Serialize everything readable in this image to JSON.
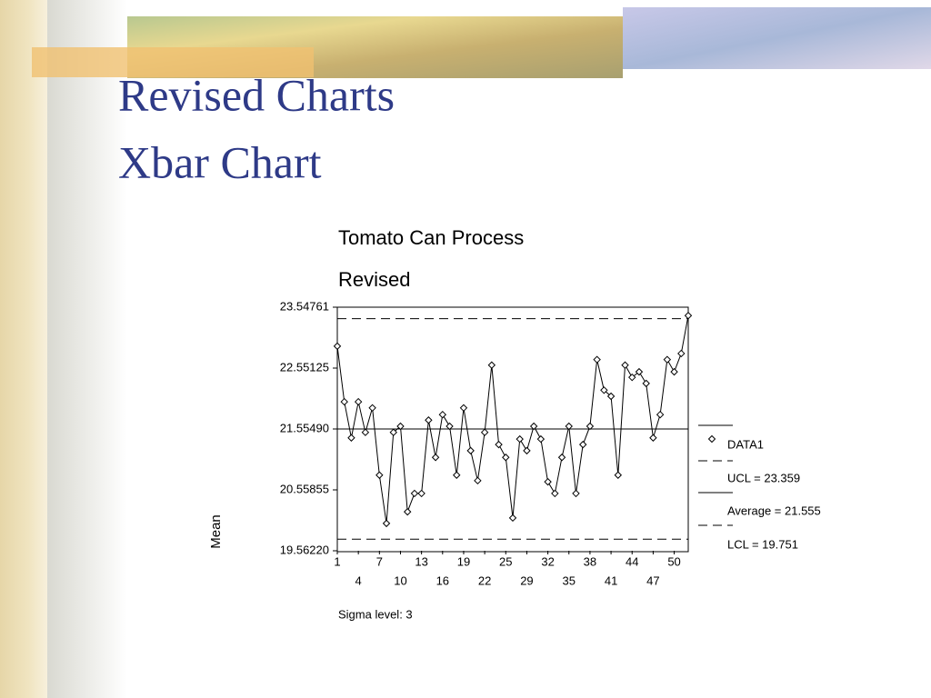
{
  "header": {
    "title": "Revised Charts",
    "subtitle": "Xbar Chart"
  },
  "chart_data": {
    "type": "line",
    "title": "Tomato Can Process",
    "subtitle": "Revised",
    "y_label": "Mean",
    "note": "Sigma level: 3",
    "categories": [
      1,
      null,
      null,
      4,
      null,
      null,
      7,
      null,
      null,
      10,
      null,
      null,
      13,
      null,
      null,
      16,
      null,
      null,
      19,
      null,
      null,
      22,
      null,
      null,
      25,
      null,
      null,
      29,
      null,
      null,
      32,
      null,
      null,
      35,
      null,
      null,
      38,
      null,
      null,
      41,
      null,
      null,
      44,
      null,
      null,
      47,
      null,
      null,
      50,
      null,
      null
    ],
    "series": [
      {
        "name": "DATA1",
        "color": "#000000",
        "values": [
          22.91,
          22.0,
          21.41,
          22.0,
          21.5,
          21.9,
          20.8,
          20.01,
          21.5,
          21.6,
          20.2,
          20.5,
          20.5,
          21.7,
          21.09,
          21.79,
          21.6,
          20.8,
          21.9,
          21.2,
          20.71,
          21.5,
          22.6,
          21.3,
          21.09,
          20.1,
          21.39,
          21.2,
          21.6,
          21.39,
          20.69,
          20.5,
          21.09,
          21.6,
          20.5,
          21.3,
          21.6,
          22.69,
          22.19,
          22.09,
          20.8,
          22.6,
          22.4,
          22.49,
          22.3,
          21.41,
          21.79,
          22.69,
          22.49,
          22.79,
          23.41
        ]
      }
    ],
    "control_lines": [
      {
        "name": "UCL = 23.359",
        "value": 23.359,
        "style": "dashed"
      },
      {
        "name": "Average = 21.555",
        "value": 21.555,
        "style": "solid"
      },
      {
        "name": "LCL = 19.751",
        "value": 19.751,
        "style": "dashed"
      }
    ],
    "ylim": [
      19.5622,
      23.54761
    ],
    "yticks": [
      {
        "value": 19.5622,
        "label": "19.56220"
      },
      20.55855,
      {
        "value": 21.5549,
        "label": "21.55490"
      },
      22.55125,
      23.54761
    ]
  }
}
